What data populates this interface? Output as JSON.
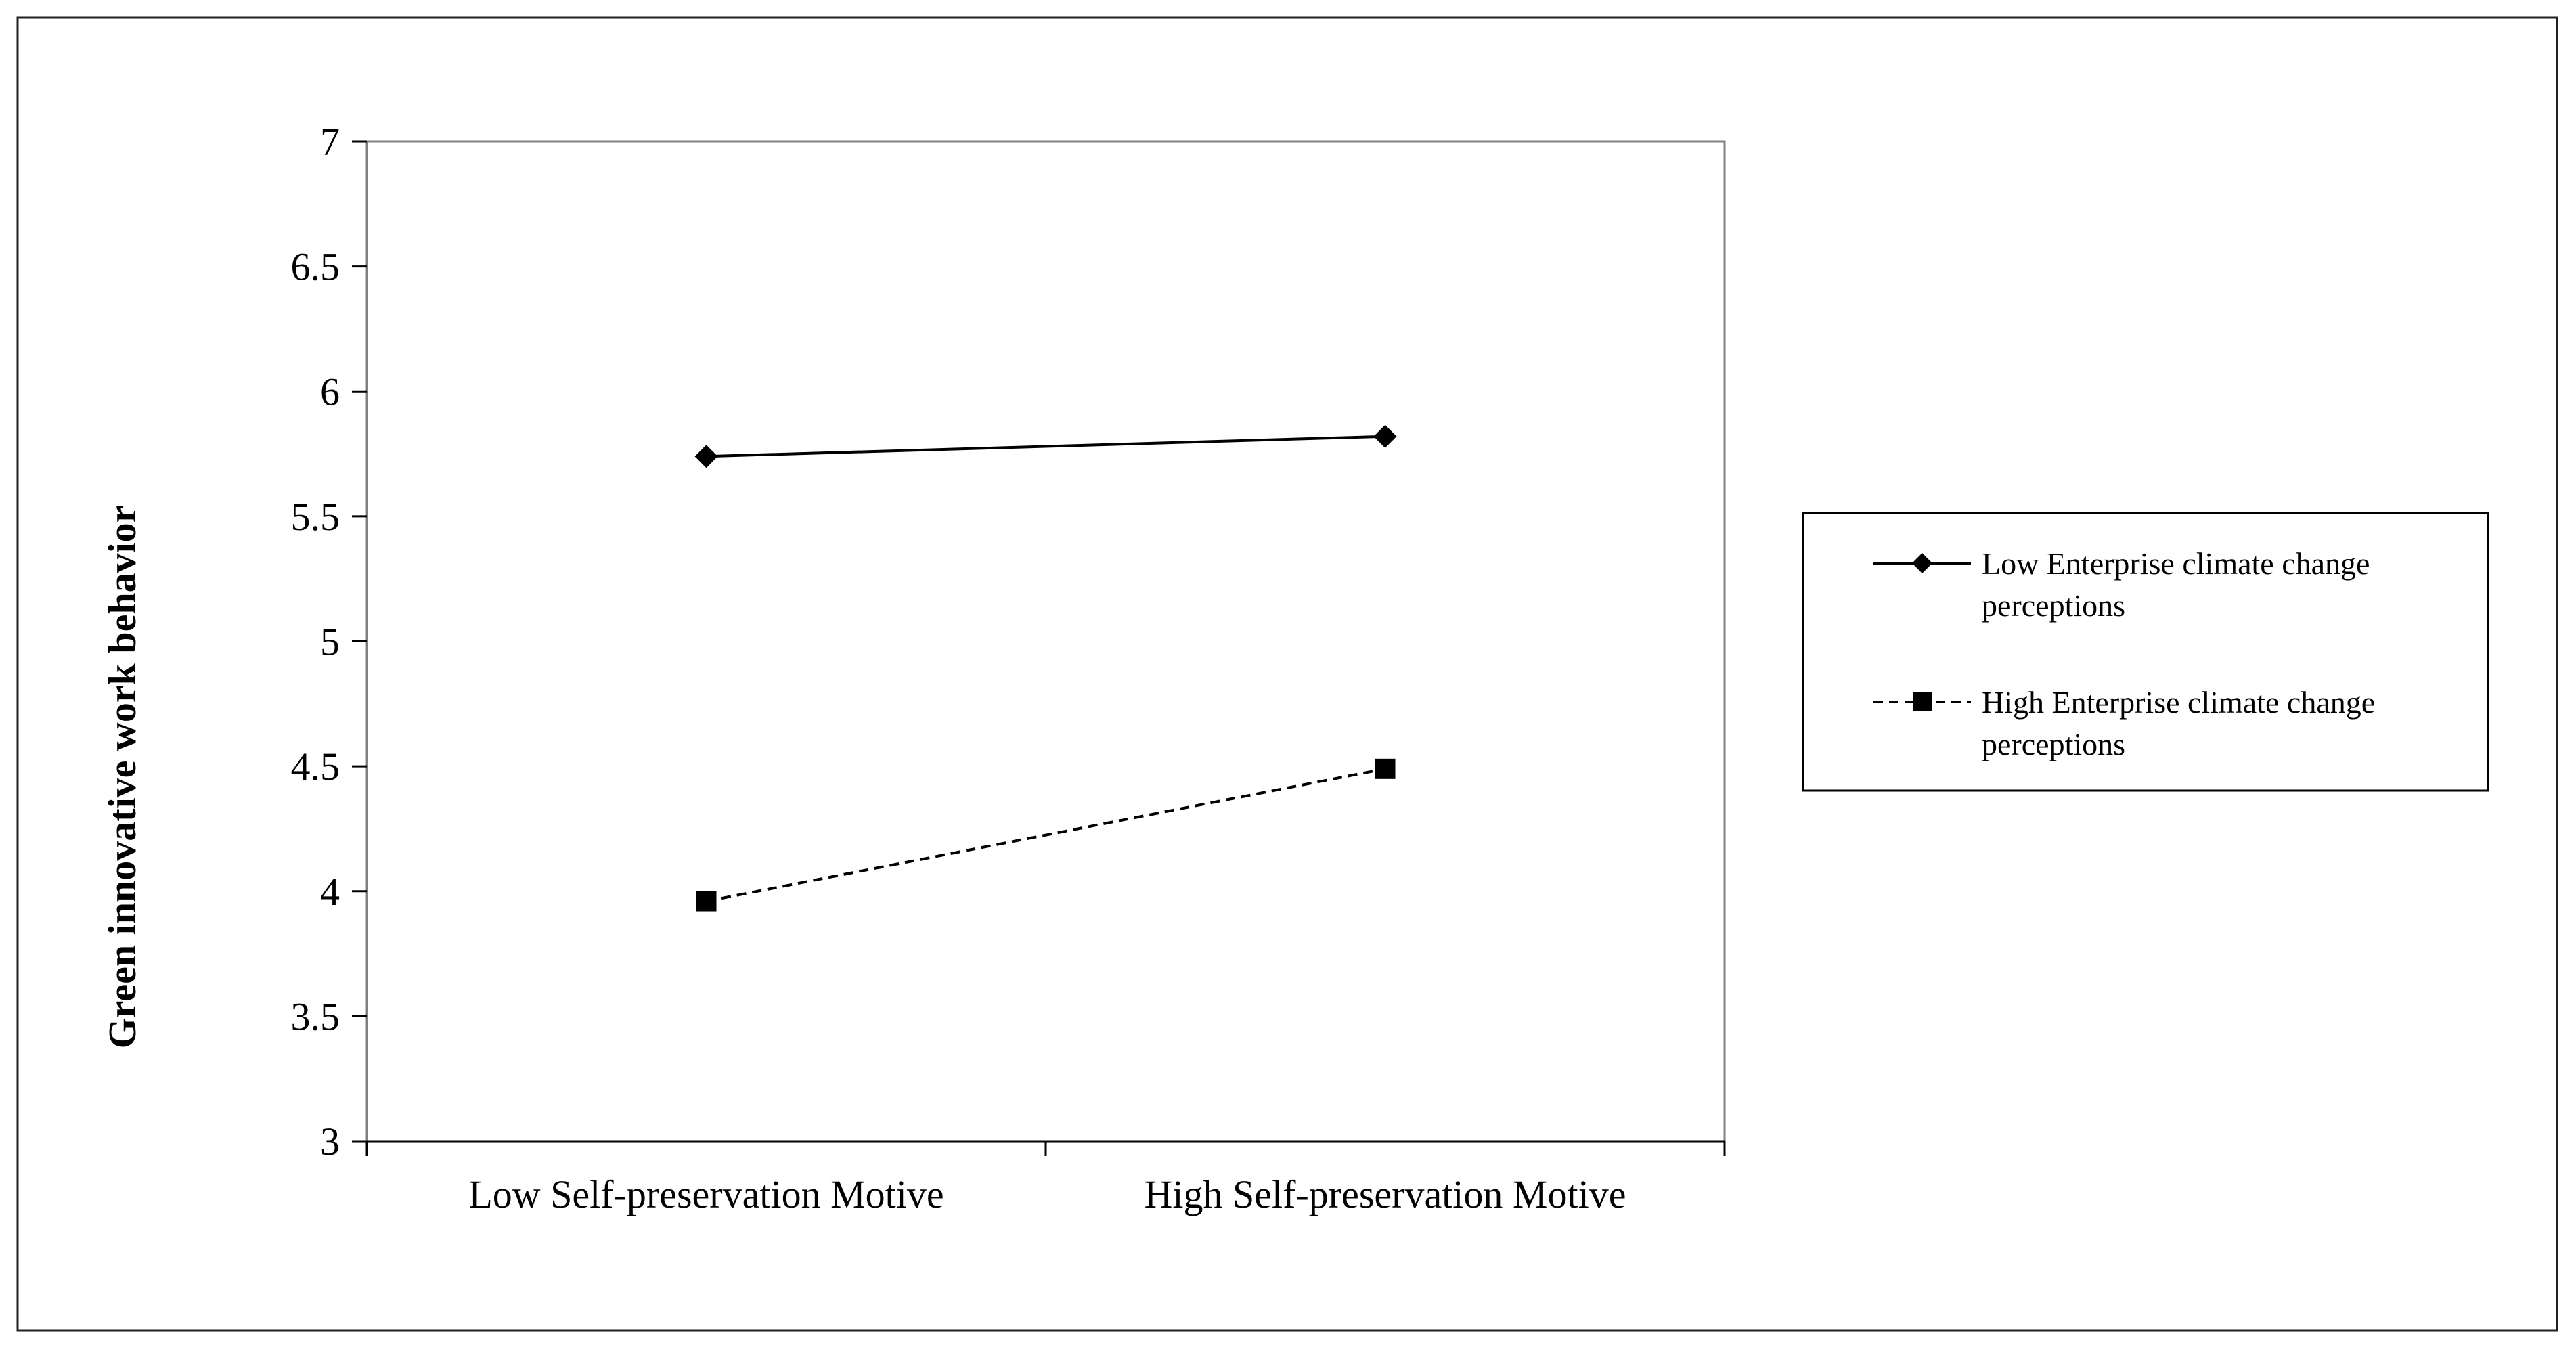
{
  "chart_data": {
    "type": "line",
    "title": "",
    "xlabel": "",
    "ylabel": "Green innovative  work behavior",
    "categories": [
      "Low Self-preservation Motive",
      "High Self-preservation Motive"
    ],
    "ylim": [
      3,
      7
    ],
    "yticks": [
      "3",
      "3.5",
      "4",
      "4.5",
      "5",
      "5.5",
      "6",
      "6.5",
      "7"
    ],
    "grid": false,
    "legend_position": "right",
    "series": [
      {
        "name": "Low Enterprise climate change perceptions",
        "legend_lines": [
          "Low Enterprise climate change",
          "perceptions"
        ],
        "values": [
          5.74,
          5.82
        ],
        "marker": "diamond",
        "line_style": "solid",
        "color": "#000000"
      },
      {
        "name": "High Enterprise climate change perceptions",
        "legend_lines": [
          "High Enterprise climate change",
          "perceptions"
        ],
        "values": [
          3.96,
          4.49
        ],
        "marker": "square",
        "line_style": "dashed",
        "color": "#000000"
      }
    ]
  }
}
